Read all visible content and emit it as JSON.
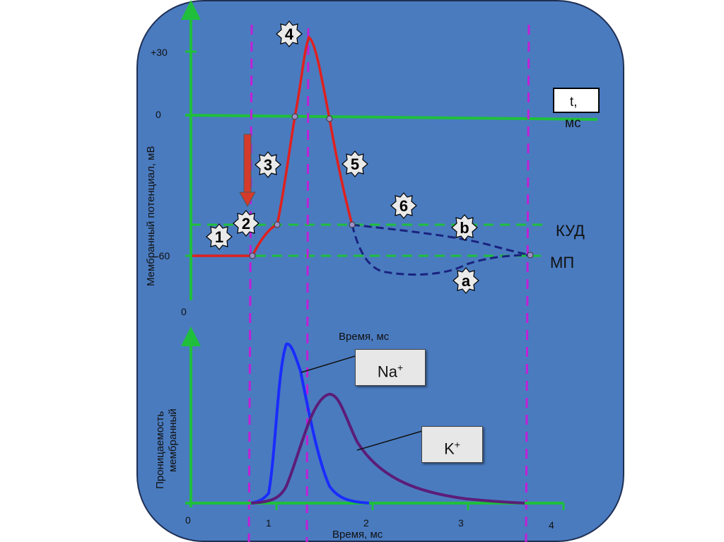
{
  "top_chart": {
    "y_axis_title": "Мембранный потенциал, мВ",
    "y_ticks": [
      "+30",
      "0",
      "-60"
    ],
    "origin_label": "0",
    "time_label_line1": "t,",
    "time_label_line2": "мс",
    "threshold_label": "КУД",
    "resting_label": "МП",
    "phase_markers": [
      "1",
      "2",
      "3",
      "4",
      "5",
      "6",
      "a",
      "b"
    ]
  },
  "bottom_chart": {
    "y_axis_title_line1": "Проницаемость",
    "y_axis_title_line2": "мембранный",
    "x_axis_title": "Время, мс",
    "x_axis_title_top": "Время, мс",
    "origin_label": "0",
    "x_ticks": [
      "1",
      "2",
      "3",
      "4"
    ],
    "na_label": "Na",
    "k_label": "K",
    "ion_sup": "+"
  },
  "colors": {
    "panel": "#4a7bbf",
    "axis": "#1fbf3c",
    "action_potential": "#e0201e",
    "dashed_trace": "#1a237e",
    "guides": "#c21fd6",
    "na_curve": "#1a2cff",
    "k_curve": "#5c1d78",
    "stimulus_arrow": "#d63a2a"
  }
}
